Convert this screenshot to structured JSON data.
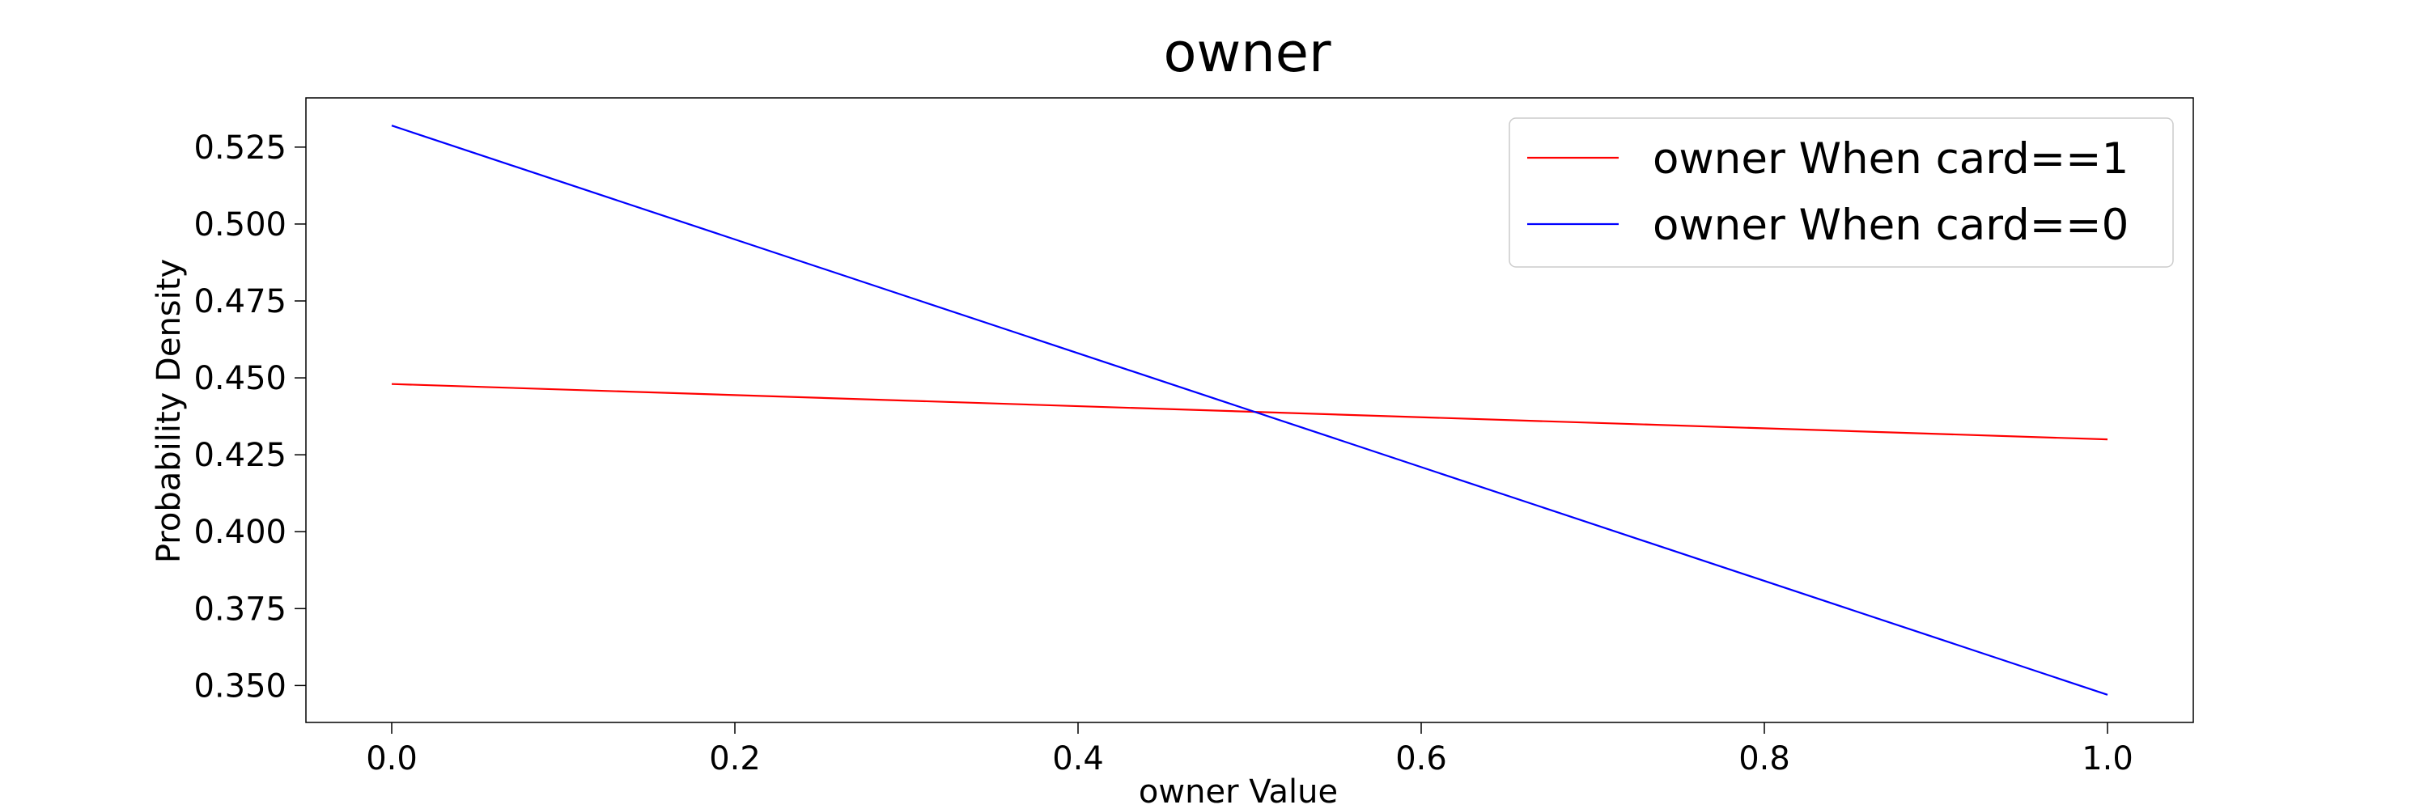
{
  "chart_data": {
    "type": "line",
    "title": "owner",
    "xlabel": "owner Value",
    "ylabel": "Probability Density",
    "xlim": [
      -0.05,
      1.05
    ],
    "ylim": [
      0.338,
      0.541
    ],
    "x_ticks": [
      "0.0",
      "0.2",
      "0.4",
      "0.6",
      "0.8",
      "1.0"
    ],
    "y_ticks": [
      "0.350",
      "0.375",
      "0.400",
      "0.425",
      "0.450",
      "0.475",
      "0.500",
      "0.525"
    ],
    "grid": false,
    "legend_position": "top-right",
    "series": [
      {
        "name": "owner When card==1",
        "color": "#ff0000",
        "x": [
          0.0,
          1.0
        ],
        "y": [
          0.448,
          0.43
        ]
      },
      {
        "name": "owner When card==0",
        "color": "#0000ff",
        "x": [
          0.0,
          1.0
        ],
        "y": [
          0.532,
          0.347
        ]
      }
    ]
  }
}
